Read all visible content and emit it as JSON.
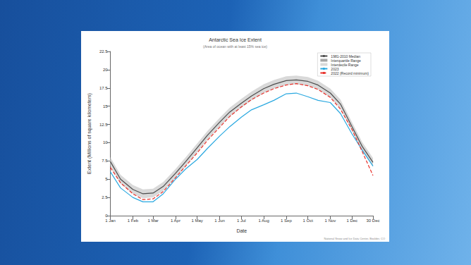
{
  "chart_data": {
    "type": "line",
    "title": "Antarctic Sea Ice Extent",
    "subtitle": "(Area of ocean with at least 15% sea ice)",
    "x_label": "Date",
    "y_label": "Extent (Millions of square kilometers)",
    "x": [
      1,
      15,
      32,
      46,
      60,
      74,
      91,
      105,
      121,
      135,
      152,
      166,
      182,
      196,
      213,
      227,
      244,
      258,
      274,
      288,
      305,
      319,
      335,
      349,
      364
    ],
    "series": [
      {
        "name": "1981-2010 Median",
        "type": "line",
        "color": "#4d4d4d",
        "line_style": "solid",
        "values": [
          7.4,
          5.0,
          3.6,
          3.0,
          3.1,
          4.0,
          5.8,
          7.4,
          9.3,
          11.0,
          12.8,
          14.2,
          15.4,
          16.4,
          17.4,
          18.0,
          18.5,
          18.6,
          18.4,
          17.9,
          16.8,
          15.3,
          12.2,
          9.5,
          7.3
        ]
      },
      {
        "name": "Interquartile Range",
        "type": "band",
        "color": "#a6a6a6",
        "lower": [
          7.1,
          4.7,
          3.3,
          2.7,
          2.8,
          3.7,
          5.5,
          7.1,
          9.0,
          10.7,
          12.5,
          13.9,
          15.1,
          16.1,
          17.1,
          17.7,
          18.2,
          18.3,
          18.1,
          17.6,
          16.5,
          15.0,
          11.9,
          9.2,
          7.0
        ],
        "upper": [
          7.7,
          5.3,
          3.9,
          3.3,
          3.4,
          4.3,
          6.1,
          7.7,
          9.6,
          11.3,
          13.1,
          14.5,
          15.7,
          16.7,
          17.7,
          18.3,
          18.8,
          18.9,
          18.7,
          18.2,
          17.1,
          15.6,
          12.5,
          9.8,
          7.6
        ]
      },
      {
        "name": "Interdecile Range",
        "type": "band",
        "color": "#d9d9d9",
        "lower": [
          6.8,
          4.4,
          3.0,
          2.4,
          2.5,
          3.4,
          5.2,
          6.8,
          8.7,
          10.4,
          12.2,
          13.6,
          14.8,
          15.8,
          16.8,
          17.4,
          17.9,
          18.0,
          17.8,
          17.3,
          16.2,
          14.7,
          11.6,
          8.9,
          6.7
        ],
        "upper": [
          8.0,
          5.6,
          4.2,
          3.6,
          3.7,
          4.6,
          6.4,
          8.0,
          9.9,
          11.6,
          13.4,
          14.8,
          16.0,
          17.0,
          18.0,
          18.6,
          19.1,
          19.2,
          19.0,
          18.5,
          17.4,
          15.9,
          12.8,
          10.1,
          7.9
        ]
      },
      {
        "name": "2023",
        "type": "line",
        "color": "#29a8e0",
        "line_style": "solid",
        "values": [
          6.0,
          3.8,
          2.5,
          1.9,
          1.9,
          3.0,
          5.0,
          6.4,
          7.7,
          9.2,
          10.9,
          12.2,
          13.5,
          14.5,
          15.2,
          15.8,
          16.7,
          16.8,
          16.3,
          15.8,
          15.5,
          14.0,
          11.2,
          9.0,
          6.8
        ]
      },
      {
        "name": "2022 (Record minimum)",
        "type": "line",
        "color": "#e8302a",
        "line_style": "dashed",
        "values": [
          6.6,
          4.5,
          3.0,
          2.2,
          2.3,
          3.3,
          5.2,
          6.8,
          8.6,
          10.3,
          12.1,
          13.6,
          14.9,
          15.9,
          16.8,
          17.4,
          17.9,
          18.1,
          17.8,
          17.3,
          16.2,
          14.6,
          11.8,
          8.8,
          5.5
        ]
      }
    ],
    "xlim": [
      1,
      364
    ],
    "xticks": [
      {
        "value": 1,
        "label": "1 Jan"
      },
      {
        "value": 32,
        "label": "1 Feb"
      },
      {
        "value": 60,
        "label": "1 Mar"
      },
      {
        "value": 91,
        "label": "1 Apr"
      },
      {
        "value": 121,
        "label": "1 May"
      },
      {
        "value": 152,
        "label": "1 Jun"
      },
      {
        "value": 182,
        "label": "1 Jul"
      },
      {
        "value": 213,
        "label": "1 Aug"
      },
      {
        "value": 244,
        "label": "1 Sep"
      },
      {
        "value": 274,
        "label": "1 Oct"
      },
      {
        "value": 305,
        "label": "1 Nov"
      },
      {
        "value": 335,
        "label": "1 Dec"
      },
      {
        "value": 364,
        "label": "30 Dec"
      }
    ],
    "ylim": [
      0,
      22.5
    ],
    "yticks": [
      0,
      2.5,
      5,
      7.5,
      10,
      12.5,
      15,
      17.5,
      20,
      22.5
    ],
    "grid": false,
    "legend": "upper right",
    "annotations": [
      "National Snow and Ice Data Center, Boulder, CO"
    ]
  }
}
